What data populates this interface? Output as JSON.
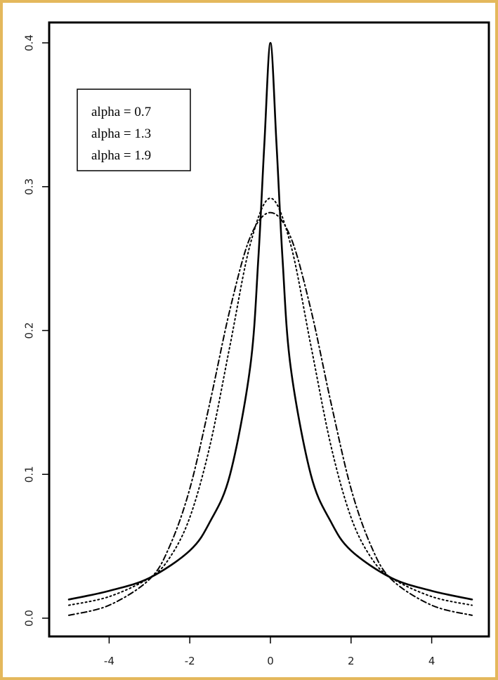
{
  "chart_data": {
    "type": "line",
    "title": "",
    "xlabel": "",
    "ylabel": "",
    "xlim": [
      -5,
      5
    ],
    "ylim": [
      0,
      0.4
    ],
    "x_ticks": [
      -4,
      -2,
      0,
      2,
      4
    ],
    "y_ticks": [
      0.0,
      0.1,
      0.2,
      0.3,
      0.4
    ],
    "x_tick_labels": [
      "-4",
      "-2",
      "0",
      "2",
      "4"
    ],
    "y_tick_labels": [
      "0.0",
      "0.1",
      "0.2",
      "0.3",
      "0.4"
    ],
    "grid": false,
    "legend_position": "top-left",
    "legend": [
      "alpha = 0.7",
      "alpha = 1.3",
      "alpha = 1.9"
    ],
    "line_color": "#000000",
    "series": [
      {
        "name": "alpha = 0.7",
        "style": "solid",
        "x": [
          -5,
          -4,
          -3,
          -2,
          -1.5,
          -1,
          -0.5,
          -0.3,
          -0.15,
          0,
          0.15,
          0.3,
          0.5,
          1,
          1.5,
          2,
          3,
          4,
          5
        ],
        "values": [
          0.013,
          0.019,
          0.028,
          0.047,
          0.067,
          0.1,
          0.175,
          0.25,
          0.33,
          0.4,
          0.33,
          0.25,
          0.175,
          0.1,
          0.067,
          0.047,
          0.028,
          0.019,
          0.013
        ]
      },
      {
        "name": "alpha = 1.3",
        "style": "dotted",
        "x": [
          -5,
          -4,
          -3,
          -2.5,
          -2,
          -1.5,
          -1,
          -0.5,
          0,
          0.5,
          1,
          1.5,
          2,
          2.5,
          3,
          4,
          5
        ],
        "values": [
          0.009,
          0.015,
          0.028,
          0.042,
          0.07,
          0.12,
          0.19,
          0.26,
          0.292,
          0.26,
          0.19,
          0.12,
          0.07,
          0.042,
          0.028,
          0.015,
          0.009
        ],
        "__comment": ""
      },
      {
        "name": "alpha = 1.9",
        "style": "dashdot",
        "x": [
          -5,
          -4,
          -3,
          -2.5,
          -2,
          -1.5,
          -1,
          -0.5,
          0,
          0.5,
          1,
          1.5,
          2,
          2.5,
          3,
          4,
          5
        ],
        "values": [
          0.002,
          0.009,
          0.027,
          0.05,
          0.09,
          0.15,
          0.215,
          0.265,
          0.282,
          0.265,
          0.215,
          0.15,
          0.09,
          0.05,
          0.027,
          0.009,
          0.002
        ]
      }
    ]
  }
}
